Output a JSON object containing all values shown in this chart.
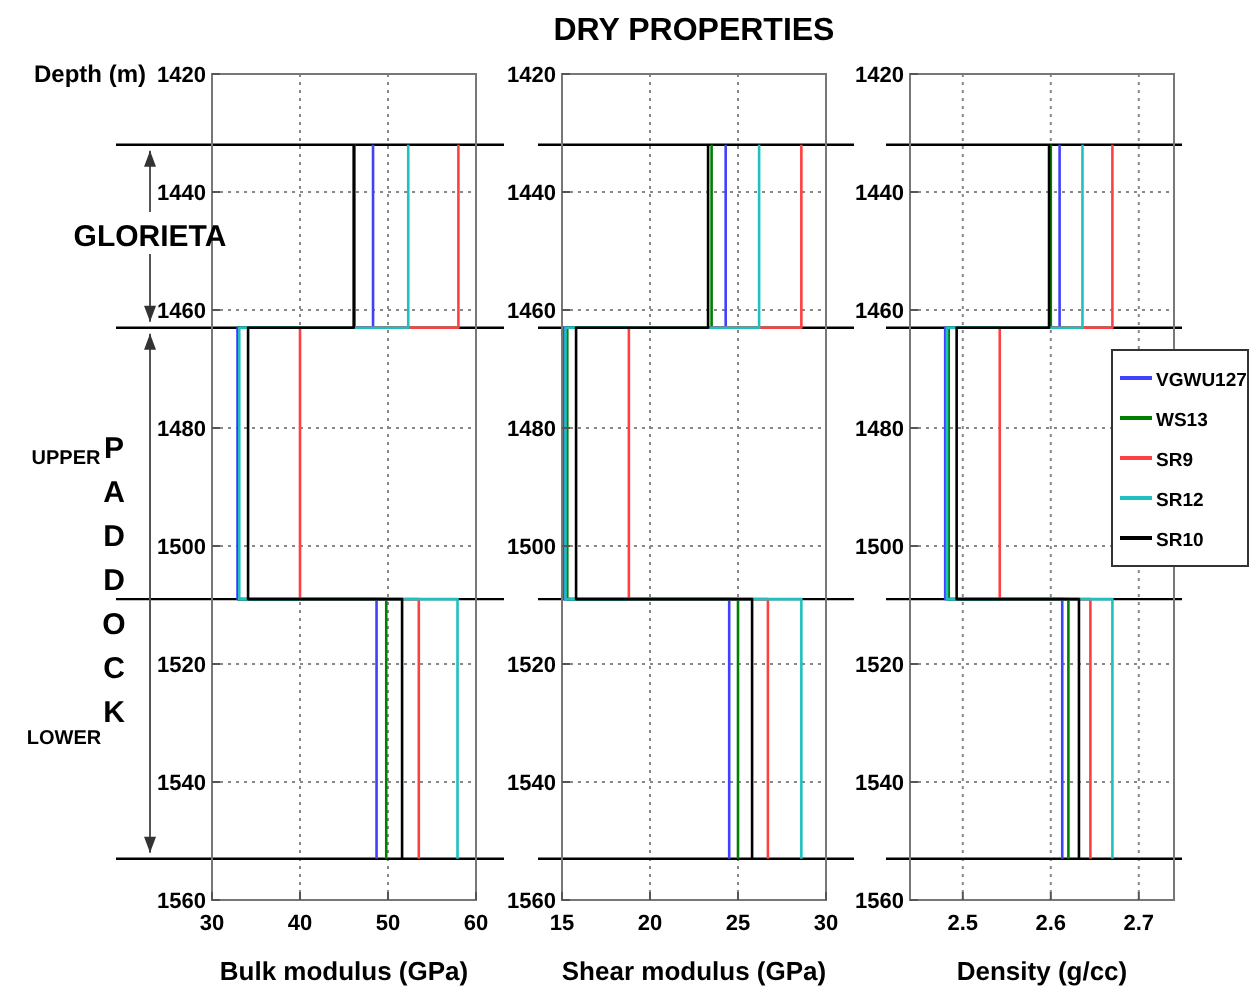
{
  "chart_data": [
    {
      "type": "line",
      "xlabel": "Bulk modulus (GPa)",
      "ylabel": "Depth (m)",
      "xlim": [
        30,
        60
      ],
      "xticks": [
        30,
        40,
        50,
        60
      ],
      "ylim": [
        1560,
        1420
      ],
      "yticks": [
        1420,
        1440,
        1460,
        1480,
        1500,
        1520,
        1540,
        1560
      ],
      "grid": true,
      "legend": false,
      "annotations": [
        "GLORIETA",
        "UPPER",
        "PADDOCK",
        "LOWER"
      ],
      "ref_lines": [
        {
          "axis": "y",
          "value": 1432,
          "color": "#000000"
        },
        {
          "axis": "y",
          "value": 1463,
          "color": "#000000"
        },
        {
          "axis": "y",
          "value": 1509,
          "color": "#000000"
        },
        {
          "axis": "y",
          "value": 1553,
          "color": "#000000"
        }
      ],
      "series": [
        {
          "color": "#4040ff",
          "x": [
            48.3,
            48.3,
            32.9,
            32.9,
            48.7,
            48.7
          ],
          "values": [
            1432,
            1463,
            1463,
            1509,
            1509,
            1553
          ]
        },
        {
          "color": "#008000",
          "x": [
            46.2,
            46.2,
            33.0,
            33.0,
            49.8,
            49.8
          ],
          "values": [
            1432,
            1463,
            1463,
            1509,
            1509,
            1553
          ]
        },
        {
          "color": "#ff4040",
          "x": [
            58.0,
            58.0,
            40.0,
            40.0,
            53.5,
            53.5
          ],
          "values": [
            1432,
            1463,
            1463,
            1509,
            1509,
            1553
          ]
        },
        {
          "color": "#20c0c0",
          "x": [
            52.3,
            52.3,
            33.1,
            33.1,
            57.9,
            57.9
          ],
          "values": [
            1432,
            1463,
            1463,
            1509,
            1509,
            1553
          ]
        },
        {
          "color": "#000000",
          "x": [
            46.1,
            46.1,
            34.1,
            34.1,
            51.6,
            51.6
          ],
          "values": [
            1432,
            1463,
            1463,
            1509,
            1509,
            1553
          ]
        }
      ]
    },
    {
      "type": "line",
      "title": "DRY PROPERTIES",
      "xlabel": "Shear modulus (GPa)",
      "xlim": [
        15,
        30
      ],
      "xticks": [
        15,
        20,
        25,
        30
      ],
      "ylim": [
        1560,
        1420
      ],
      "yticks": [
        1420,
        1440,
        1460,
        1480,
        1500,
        1520,
        1540,
        1560
      ],
      "grid": true,
      "legend": false,
      "ref_lines": [
        {
          "axis": "y",
          "value": 1432,
          "color": "#000000"
        },
        {
          "axis": "y",
          "value": 1463,
          "color": "#000000"
        },
        {
          "axis": "y",
          "value": 1509,
          "color": "#000000"
        },
        {
          "axis": "y",
          "value": 1553,
          "color": "#000000"
        }
      ],
      "series": [
        {
          "color": "#4040ff",
          "x": [
            24.3,
            24.3,
            15.1,
            15.1,
            24.5,
            24.5
          ],
          "values": [
            1432,
            1463,
            1463,
            1509,
            1509,
            1553
          ]
        },
        {
          "color": "#008000",
          "x": [
            23.5,
            23.5,
            15.3,
            15.3,
            25.0,
            25.0
          ],
          "values": [
            1432,
            1463,
            1463,
            1509,
            1509,
            1553
          ]
        },
        {
          "color": "#ff4040",
          "x": [
            28.6,
            28.6,
            18.8,
            18.8,
            26.7,
            26.7
          ],
          "values": [
            1432,
            1463,
            1463,
            1509,
            1509,
            1553
          ]
        },
        {
          "color": "#20c0c0",
          "x": [
            26.2,
            26.2,
            15.2,
            15.2,
            28.6,
            28.6
          ],
          "values": [
            1432,
            1463,
            1463,
            1509,
            1509,
            1553
          ]
        },
        {
          "color": "#000000",
          "x": [
            23.3,
            23.3,
            15.8,
            15.8,
            25.8,
            25.8
          ],
          "values": [
            1432,
            1463,
            1463,
            1509,
            1509,
            1553
          ]
        }
      ]
    },
    {
      "type": "line",
      "xlabel": "Density (g/cc)",
      "xlim": [
        2.44,
        2.74
      ],
      "xticks": [
        2.5,
        2.6,
        2.7
      ],
      "ylim": [
        1560,
        1420
      ],
      "yticks": [
        1420,
        1440,
        1460,
        1480,
        1500,
        1520,
        1540,
        1560
      ],
      "grid": true,
      "legend": "right",
      "ref_lines": [
        {
          "axis": "y",
          "value": 1432,
          "color": "#000000"
        },
        {
          "axis": "y",
          "value": 1463,
          "color": "#000000"
        },
        {
          "axis": "y",
          "value": 1509,
          "color": "#000000"
        },
        {
          "axis": "y",
          "value": 1553,
          "color": "#000000"
        }
      ],
      "series": [
        {
          "name": "VGWU127",
          "color": "#4040ff",
          "x": [
            2.61,
            2.61,
            2.48,
            2.48,
            2.613,
            2.613
          ],
          "values": [
            1432,
            1463,
            1463,
            1509,
            1509,
            1553
          ]
        },
        {
          "name": "WS13",
          "color": "#008000",
          "x": [
            2.6,
            2.6,
            2.484,
            2.484,
            2.62,
            2.62
          ],
          "values": [
            1432,
            1463,
            1463,
            1509,
            1509,
            1553
          ]
        },
        {
          "name": "SR9",
          "color": "#ff4040",
          "x": [
            2.67,
            2.67,
            2.542,
            2.542,
            2.645,
            2.645
          ],
          "values": [
            1432,
            1463,
            1463,
            1509,
            1509,
            1553
          ]
        },
        {
          "name": "SR12",
          "color": "#20c0c0",
          "x": [
            2.636,
            2.636,
            2.482,
            2.482,
            2.67,
            2.67
          ],
          "values": [
            1432,
            1463,
            1463,
            1509,
            1509,
            1553
          ]
        },
        {
          "name": "SR10",
          "color": "#000000",
          "x": [
            2.598,
            2.598,
            2.493,
            2.493,
            2.632,
            2.632
          ],
          "values": [
            1432,
            1463,
            1463,
            1509,
            1509,
            1553
          ]
        }
      ]
    }
  ]
}
